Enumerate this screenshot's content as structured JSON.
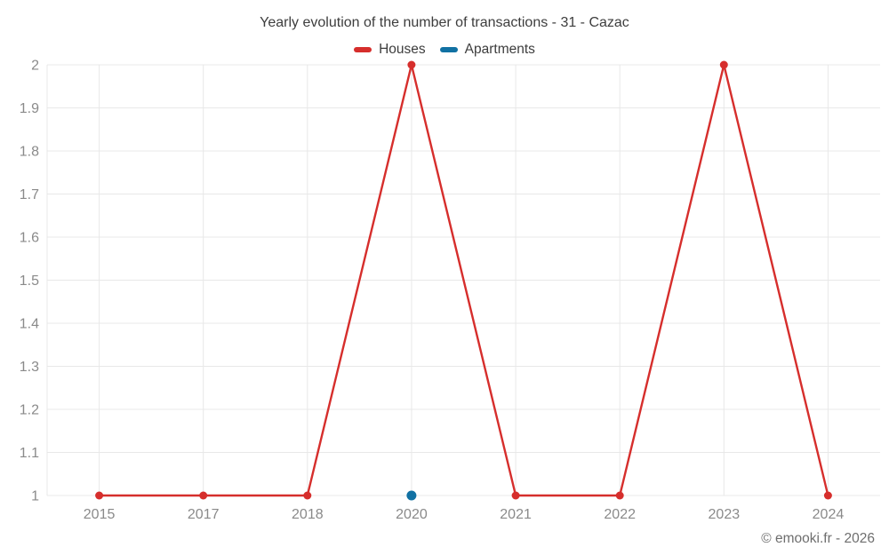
{
  "page": {
    "title": "Yearly evolution of the number of transactions - 31 - Cazac",
    "footer": "© emooki.fr - 2026"
  },
  "legend": {
    "items": [
      {
        "label": "Houses",
        "color": "#d62e2c"
      },
      {
        "label": "Apartments",
        "color": "#1171a3"
      }
    ]
  },
  "chart_data": {
    "type": "line",
    "title": "Yearly evolution of the number of transactions - 31 - Cazac",
    "categories": [
      "2015",
      "2017",
      "2018",
      "2020",
      "2021",
      "2022",
      "2023",
      "2024"
    ],
    "series": [
      {
        "name": "Houses",
        "color": "#d62e2c",
        "values": [
          1,
          1,
          1,
          2,
          1,
          1,
          2,
          1
        ]
      },
      {
        "name": "Apartments",
        "color": "#1171a3",
        "values": [
          null,
          null,
          null,
          1,
          null,
          null,
          null,
          null
        ]
      }
    ],
    "xlabel": "",
    "ylabel": "",
    "ylim": [
      1,
      2
    ],
    "y_ticks": [
      1,
      1.1,
      1.2,
      1.3,
      1.4,
      1.5,
      1.6,
      1.7,
      1.8,
      1.9,
      2
    ],
    "grid": true,
    "legend_position": "top",
    "grid_color": "#e8e8e8",
    "tick_color": "#8a8a8a"
  }
}
